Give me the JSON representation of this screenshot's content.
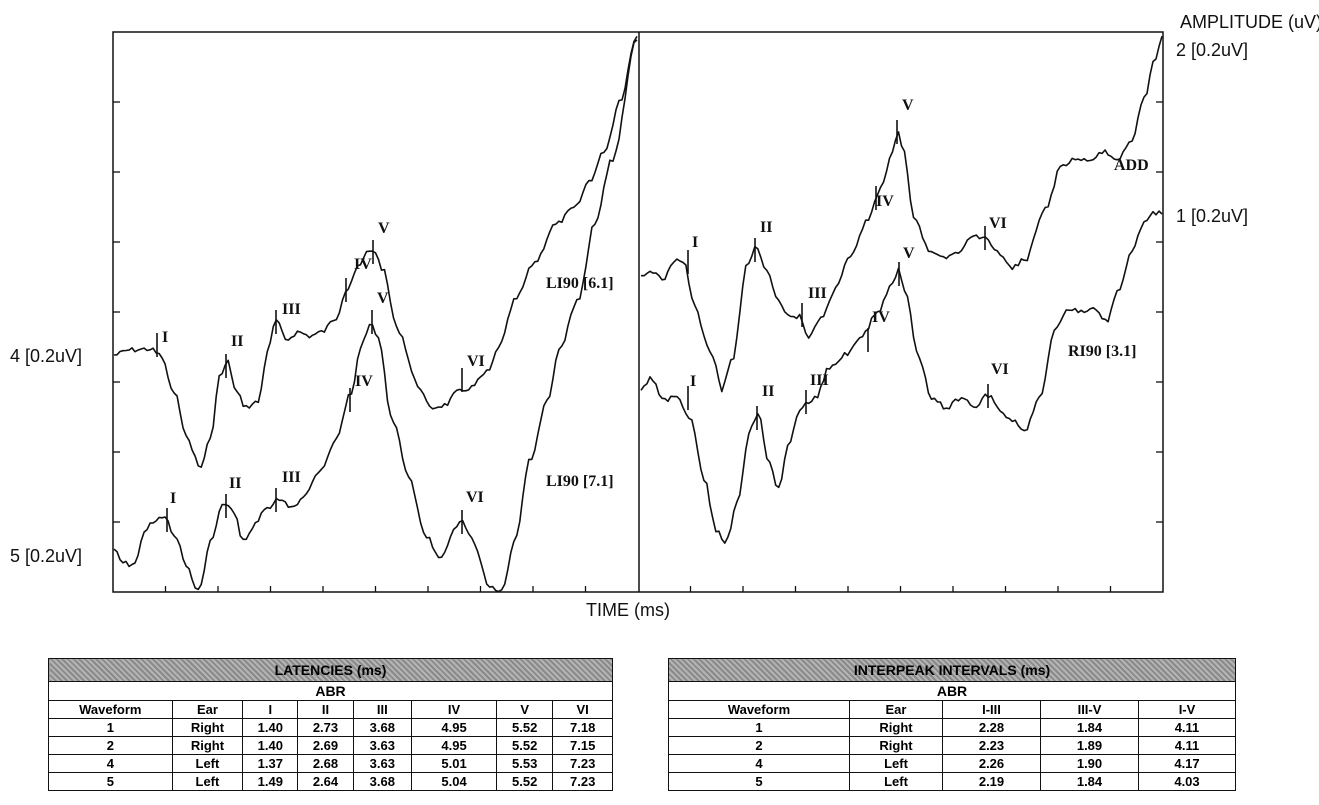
{
  "chart_data": {
    "type": "line",
    "xlabel": "TIME (ms)",
    "ylabel": "AMPLITUDE (uV)",
    "channel_labels": {
      "left": [
        "4 [0.2uV]",
        "5 [0.2uV]"
      ],
      "right": [
        "2 [0.2uV]",
        "1 [0.2uV]"
      ]
    },
    "grid": false,
    "series": [
      {
        "name": "LI90 [6.1]",
        "panel": "left",
        "waveform": 4,
        "peaks": [
          {
            "label": "I",
            "ms": 1.37
          },
          {
            "label": "II",
            "ms": 2.68
          },
          {
            "label": "III",
            "ms": 3.63
          },
          {
            "label": "IV",
            "ms": 5.01
          },
          {
            "label": "V",
            "ms": 5.53
          },
          {
            "label": "VI",
            "ms": 7.23
          }
        ]
      },
      {
        "name": "LI90 [7.1]",
        "panel": "left",
        "waveform": 5,
        "peaks": [
          {
            "label": "I",
            "ms": 1.49
          },
          {
            "label": "II",
            "ms": 2.64
          },
          {
            "label": "III",
            "ms": 3.68
          },
          {
            "label": "IV",
            "ms": 5.04
          },
          {
            "label": "V",
            "ms": 5.52
          },
          {
            "label": "VI",
            "ms": 7.23
          }
        ]
      },
      {
        "name": "ADD",
        "panel": "right",
        "waveform": 2,
        "peaks": [
          {
            "label": "I",
            "ms": 1.4
          },
          {
            "label": "II",
            "ms": 2.69
          },
          {
            "label": "III",
            "ms": 3.63
          },
          {
            "label": "IV",
            "ms": 4.95
          },
          {
            "label": "V",
            "ms": 5.52
          },
          {
            "label": "VI",
            "ms": 7.15
          }
        ]
      },
      {
        "name": "RI90 [3.1]",
        "panel": "right",
        "waveform": 1,
        "peaks": [
          {
            "label": "I",
            "ms": 1.4
          },
          {
            "label": "II",
            "ms": 2.73
          },
          {
            "label": "III",
            "ms": 3.68
          },
          {
            "label": "IV",
            "ms": 4.95
          },
          {
            "label": "V",
            "ms": 5.52
          },
          {
            "label": "VI",
            "ms": 7.18
          }
        ]
      }
    ]
  },
  "latencies": {
    "title": "LATENCIES (ms)",
    "subtitle": "ABR",
    "headers": [
      "Waveform",
      "Ear",
      "I",
      "II",
      "III",
      "IV",
      "V",
      "VI"
    ],
    "rows": [
      [
        "1",
        "Right",
        "1.40",
        "2.73",
        "3.68",
        "4.95",
        "5.52",
        "7.18"
      ],
      [
        "2",
        "Right",
        "1.40",
        "2.69",
        "3.63",
        "4.95",
        "5.52",
        "7.15"
      ],
      [
        "4",
        "Left",
        "1.37",
        "2.68",
        "3.63",
        "5.01",
        "5.53",
        "7.23"
      ],
      [
        "5",
        "Left",
        "1.49",
        "2.64",
        "3.68",
        "5.04",
        "5.52",
        "7.23"
      ]
    ]
  },
  "intervals": {
    "title": "INTERPEAK INTERVALS (ms)",
    "subtitle": "ABR",
    "headers": [
      "Waveform",
      "Ear",
      "I-III",
      "III-V",
      "I-V"
    ],
    "rows": [
      [
        "1",
        "Right",
        "2.28",
        "1.84",
        "4.11"
      ],
      [
        "2",
        "Right",
        "2.23",
        "1.89",
        "4.11"
      ],
      [
        "4",
        "Left",
        "2.26",
        "1.90",
        "4.17"
      ],
      [
        "5",
        "Left",
        "2.19",
        "1.84",
        "4.03"
      ]
    ]
  }
}
